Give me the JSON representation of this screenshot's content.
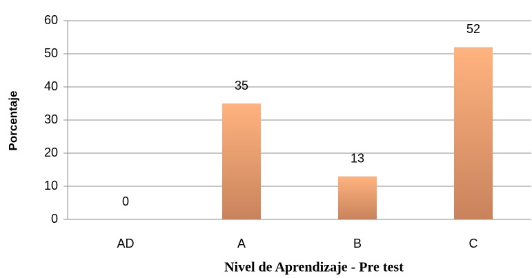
{
  "chart_data": {
    "type": "bar",
    "categories": [
      "AD",
      "A",
      "B",
      "C"
    ],
    "values": [
      0,
      35,
      13,
      52
    ],
    "gradient": [
      "#ffb37f",
      "#c9835c"
    ],
    "xlabel": "Nivel de Aprendizaje - Pre test",
    "ylabel": "Porcentaje",
    "ylim": [
      0,
      60
    ],
    "yticks": [
      0,
      10,
      20,
      30,
      40,
      50,
      60
    ],
    "grid": true
  }
}
